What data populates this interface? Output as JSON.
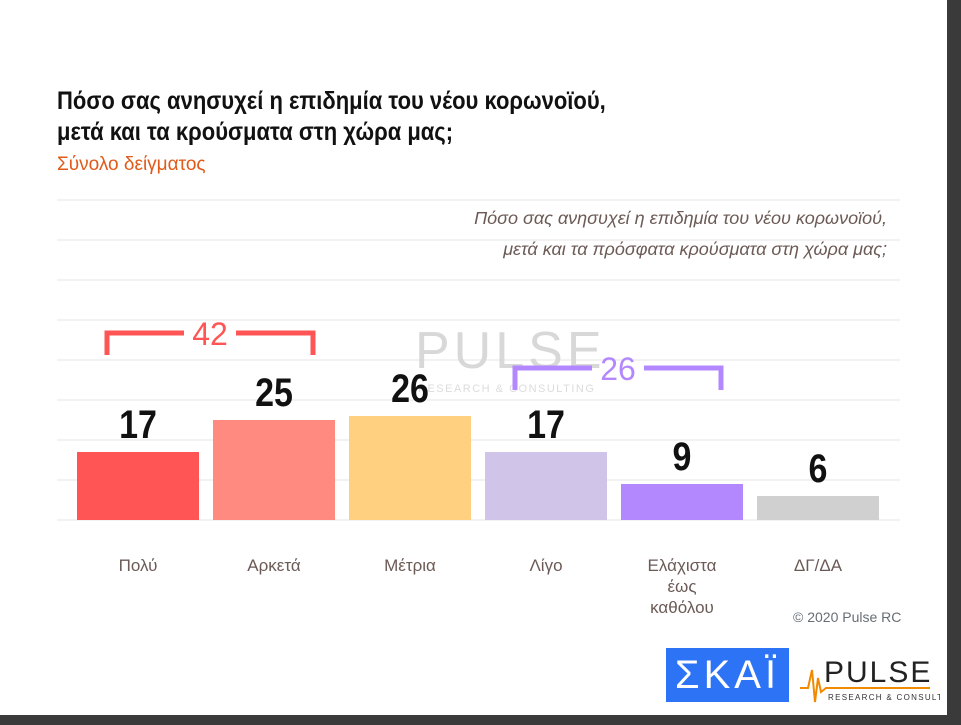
{
  "title_line1": "Πόσο σας ανησυχεί η επιδημία του νέου κορωνοϊού,",
  "title_line2": "μετά και τα κρούσματα στη χώρα μας;",
  "subtitle": "Σύνολο δείγματος",
  "question": "Πόσο σας ανησυχεί η επιδημία του νέου κορωνοϊού,\nμετά και τα πρόσφατα κρούσματα στη χώρα μας;",
  "copyright": "© 2020 Pulse RC",
  "logos": {
    "skai": "ΣΚΑΪ",
    "pulse": "PULSE",
    "pulse_sub": "RESEARCH & CONSULTING",
    "watermark": "PULSE"
  },
  "chart_data": {
    "type": "bar",
    "categories": [
      "Πολύ",
      "Αρκετά",
      "Μέτρια",
      "Λίγο",
      "Ελάχιστα\nέως\nκαθόλου",
      "ΔΓ/ΔΑ"
    ],
    "values": [
      17,
      25,
      26,
      17,
      9,
      6
    ],
    "colors": [
      "#ff5555",
      "#ff8a80",
      "#ffd080",
      "#d1c4e9",
      "#b388ff",
      "#d0d0d0"
    ],
    "ylim": [
      0,
      80
    ],
    "grid": true,
    "brackets": [
      {
        "label": "42",
        "from": 0,
        "to": 1,
        "color": "#ff5555"
      },
      {
        "label": "26",
        "from": 3,
        "to": 4,
        "color": "#b388ff"
      }
    ]
  }
}
